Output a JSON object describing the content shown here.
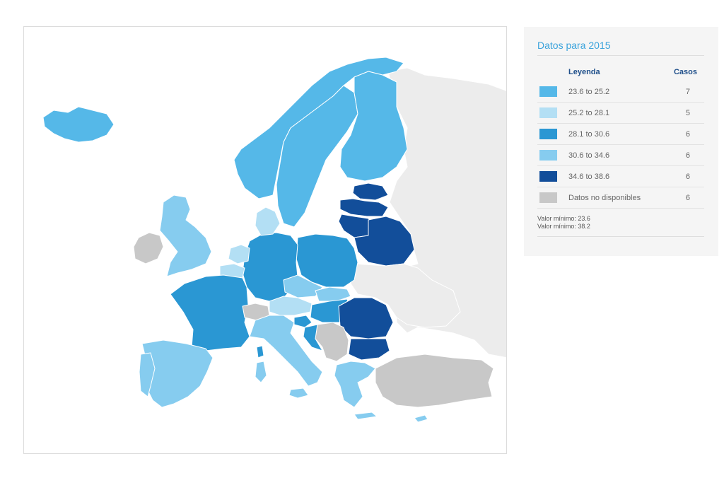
{
  "legend": {
    "title": "Datos para 2015",
    "header_label": "Leyenda",
    "header_count": "Casos",
    "rows": [
      {
        "label": "23.6 to 25.2",
        "count": "7",
        "color": "#55b8e8"
      },
      {
        "label": "25.2 to 28.1",
        "count": "5",
        "color": "#b3dff4"
      },
      {
        "label": "28.1 to 30.6",
        "count": "6",
        "color": "#2a97d3"
      },
      {
        "label": "30.6 to 34.6",
        "count": "6",
        "color": "#86ccef"
      },
      {
        "label": "34.6 to 38.6",
        "count": "6",
        "color": "#124e9a"
      },
      {
        "label": "Datos no disponibles",
        "count": "6",
        "color": "#c8c8c8"
      }
    ],
    "note_min": "Valor mínimo: 23.6",
    "note_max": "Valor mínimo: 38.2"
  },
  "map_colors": {
    "c1": "#55b8e8",
    "c2": "#b3dff4",
    "c3": "#2a97d3",
    "c4": "#86ccef",
    "c5": "#124e9a",
    "na": "#c8c8c8",
    "outside": "#ececec",
    "sea": "#ffffff",
    "border": "#ffffff"
  }
}
